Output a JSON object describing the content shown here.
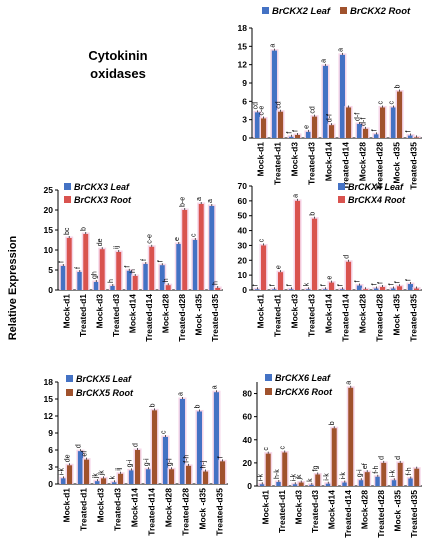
{
  "heading": {
    "line1": "Cytokinin",
    "line2": "oxidases"
  },
  "y_axis_label": "Relative Expression",
  "colors": {
    "leaf": "#4472C4",
    "root": "#A0522D",
    "leaf_root3_4": "#D9534F",
    "glow": "#F6D6E8",
    "axis": "#000000"
  },
  "chart_data": [
    {
      "id": "ckx2",
      "type": "bar",
      "categories": [
        "Mock-d1",
        "Treated-d1",
        "Mock-d3",
        "Treated-d3",
        "Mock-d14",
        "Treated-d14",
        "Mock-d28",
        "Treated-d28",
        "Mock -d35",
        "Treated-d35"
      ],
      "series": [
        {
          "name": "BrCKX2 Leaf",
          "values": [
            4.2,
            14.3,
            0.2,
            1.0,
            11.8,
            13.6,
            2.3,
            0.6,
            5.0,
            0.4
          ],
          "labels": [
            "cd",
            "a",
            "f",
            "e",
            "a",
            "a",
            "d-f",
            "f",
            "c",
            "f"
          ]
        },
        {
          "name": "BrCKX2 Root",
          "values": [
            3.2,
            4.3,
            0.5,
            3.5,
            2.1,
            5.0,
            1.5,
            5.0,
            7.6,
            0.1
          ],
          "labels": [
            "c-e",
            "cd",
            "f",
            "cd",
            "d-f",
            "",
            "d-f",
            "c",
            "b",
            ""
          ]
        }
      ],
      "ylim": [
        0,
        18
      ],
      "yticks": [
        0,
        3,
        6,
        9,
        12,
        15,
        18
      ]
    },
    {
      "id": "ckx3",
      "type": "bar",
      "categories": [
        "Mock-d1",
        "Treated-d1",
        "Mock-d3",
        "Treated-d3",
        "Mock-d14",
        "Treated-d14",
        "Mock-d28",
        "Treated-d28",
        "Mock -d35",
        "Treated-d35"
      ],
      "series": [
        {
          "name": "BrCKX3 Leaf",
          "values": [
            6.0,
            4.5,
            2.0,
            1.0,
            4.8,
            6.5,
            6.2,
            11.5,
            12.5,
            21.0
          ],
          "labels": [
            "f",
            "f",
            "gh",
            "h",
            "f",
            "f",
            "f",
            "e",
            "c",
            "a"
          ]
        },
        {
          "name": "BrCKX3 Root",
          "values": [
            13.0,
            14.0,
            10.2,
            9.5,
            3.5,
            10.8,
            1.2,
            20.0,
            21.5,
            0.5
          ],
          "labels": [
            "bc",
            "b",
            "de",
            "ij",
            "h",
            "c-e",
            "h",
            "b-e",
            "a",
            "h"
          ]
        }
      ],
      "ylim": [
        0,
        25
      ],
      "yticks": [
        0,
        5,
        10,
        15,
        20,
        25
      ]
    },
    {
      "id": "ckx4",
      "type": "bar",
      "categories": [
        "Mock-d1",
        "Treated-d1",
        "Mock-d3",
        "Treated-d3",
        "Mock-d14",
        "Treated-d14",
        "Mock-d28",
        "Treated-d28",
        "Mock -d35",
        "Treated-d35"
      ],
      "series": [
        {
          "name": "BrCKX4 Leaf",
          "values": [
            0.5,
            0.5,
            0.5,
            0.5,
            0.5,
            0.5,
            3.0,
            1.0,
            1.0,
            4.0
          ],
          "labels": [
            "f",
            "f",
            "f",
            "k",
            "f",
            "f",
            "f",
            "f",
            "f",
            "f"
          ]
        },
        {
          "name": "BrCKX4 Root",
          "values": [
            30.0,
            12.0,
            60.0,
            48.0,
            5.0,
            19.0,
            0.5,
            2.0,
            2.5,
            1.0
          ],
          "labels": [
            "c",
            "e",
            "a",
            "b",
            "e",
            "d",
            "",
            "f",
            "f",
            ""
          ]
        }
      ],
      "ylim": [
        0,
        70
      ],
      "yticks": [
        0,
        10,
        20,
        30,
        40,
        50,
        60,
        70
      ]
    },
    {
      "id": "ckx5",
      "type": "bar",
      "categories": [
        "Mock-d1",
        "Treated-d1",
        "Mock-d3",
        "Treated-d3",
        "Mock-d14",
        "Treated-d14",
        "Mock-d28",
        "Treated-d28",
        "Mock -d35",
        "Treated-d35"
      ],
      "series": [
        {
          "name": "BrCKX5 Leaf",
          "values": [
            1.0,
            5.8,
            0.5,
            0.3,
            2.4,
            2.6,
            8.3,
            15.0,
            12.8,
            16.2
          ],
          "labels": [
            "i-k",
            "d",
            "jk",
            "k",
            "g-i",
            "g-i",
            "c",
            "a",
            "b",
            "a"
          ]
        },
        {
          "name": "BrCKX5 Root",
          "values": [
            3.3,
            4.3,
            1.0,
            1.8,
            6.0,
            13.0,
            2.6,
            3.2,
            2.2,
            4.0
          ],
          "labels": [
            "de",
            "ef",
            "jk",
            "ij",
            "d",
            "b",
            "g-i",
            "f-h",
            "h-j",
            "f"
          ]
        }
      ],
      "ylim": [
        0,
        18
      ],
      "yticks": [
        0,
        3,
        6,
        9,
        12,
        15,
        18
      ]
    },
    {
      "id": "ckx6",
      "type": "bar",
      "categories": [
        "Mock-d1",
        "Treated-d1",
        "Mock-d3",
        "Treated-d3",
        "Mock-d14",
        "Treated-d14",
        "Mock-d28",
        "Treated-d28",
        "Mock -d35",
        "Treated-d35"
      ],
      "series": [
        {
          "name": "BrCKX6 Leaf",
          "values": [
            1.5,
            3.5,
            1.5,
            1.0,
            2.0,
            3.0,
            5.0,
            8.0,
            5.0,
            6.5
          ],
          "labels": [
            "i-k",
            "h-k",
            "i-k",
            "k",
            "i-k",
            "i-k",
            "g-i",
            "f-h",
            "i-k",
            "f-h"
          ]
        },
        {
          "name": "BrCKX6 Root",
          "values": [
            28.0,
            29.0,
            3.0,
            10.0,
            50.0,
            85.0,
            12.0,
            20.0,
            20.0,
            15.0
          ],
          "labels": [
            "c",
            "c",
            "jk",
            "fg",
            "b",
            "a",
            "ef",
            "d",
            "d",
            ""
          ]
        }
      ],
      "ylim": [
        0,
        90
      ],
      "yticks": [
        0,
        20,
        40,
        60,
        80
      ]
    }
  ]
}
